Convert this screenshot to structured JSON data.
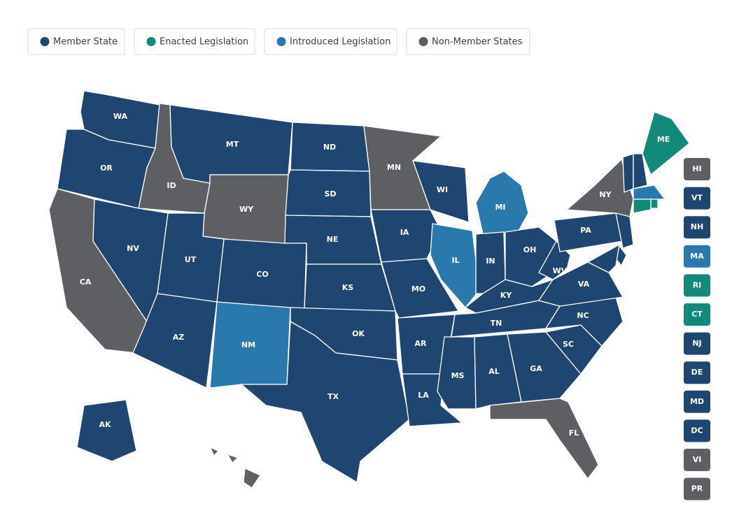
{
  "legend": [
    {
      "label": "Member State",
      "color": "#1f4670"
    },
    {
      "label": "Enacted Legislation",
      "color": "#13897a"
    },
    {
      "label": "Introduced Legislation",
      "color": "#2979ad"
    },
    {
      "label": "Non-Member States",
      "color": "#5d5f63"
    }
  ],
  "map_states": [
    {
      "label": "WA",
      "status": "Member State"
    },
    {
      "label": "OR",
      "status": "Member State"
    },
    {
      "label": "ID",
      "status": "Non-Member States"
    },
    {
      "label": "MT",
      "status": "Member State"
    },
    {
      "label": "WY",
      "status": "Non-Member States"
    },
    {
      "label": "ND",
      "status": "Member State"
    },
    {
      "label": "SD",
      "status": "Member State"
    },
    {
      "label": "NE",
      "status": "Member State"
    },
    {
      "label": "CA",
      "status": "Non-Member States"
    },
    {
      "label": "NV",
      "status": "Member State"
    },
    {
      "label": "UT",
      "status": "Member State"
    },
    {
      "label": "CO",
      "status": "Member State"
    },
    {
      "label": "AZ",
      "status": "Member State"
    },
    {
      "label": "NM",
      "status": "Introduced Legislation"
    },
    {
      "label": "KS",
      "status": "Member State"
    },
    {
      "label": "OK",
      "status": "Member State"
    },
    {
      "label": "TX",
      "status": "Member State"
    },
    {
      "label": "MN",
      "status": "Non-Member States"
    },
    {
      "label": "IA",
      "status": "Member State"
    },
    {
      "label": "MO",
      "status": "Member State"
    },
    {
      "label": "AR",
      "status": "Member State"
    },
    {
      "label": "LA",
      "status": "Member State"
    },
    {
      "label": "WI",
      "status": "Member State"
    },
    {
      "label": "IL",
      "status": "Introduced Legislation"
    },
    {
      "label": "MI",
      "status": "Introduced Legislation"
    },
    {
      "label": "IN",
      "status": "Member State"
    },
    {
      "label": "OH",
      "status": "Member State"
    },
    {
      "label": "KY",
      "status": "Member State"
    },
    {
      "label": "TN",
      "status": "Member State"
    },
    {
      "label": "MS",
      "status": "Member State"
    },
    {
      "label": "AL",
      "status": "Member State"
    },
    {
      "label": "GA",
      "status": "Member State"
    },
    {
      "label": "FL",
      "status": "Non-Member States"
    },
    {
      "label": "SC",
      "status": "Member State"
    },
    {
      "label": "NC",
      "status": "Member State"
    },
    {
      "label": "VA",
      "status": "Member State"
    },
    {
      "label": "WV",
      "status": "Member State"
    },
    {
      "label": "PA",
      "status": "Member State"
    },
    {
      "label": "NY",
      "status": "Non-Member States"
    },
    {
      "label": "ME",
      "status": "Enacted Legislation"
    },
    {
      "label": "AK",
      "status": "Member State"
    }
  ],
  "side_buttons": [
    {
      "label": "HI",
      "status": "Non-Member States"
    },
    {
      "label": "VT",
      "status": "Member State"
    },
    {
      "label": "NH",
      "status": "Member State"
    },
    {
      "label": "MA",
      "status": "Introduced Legislation"
    },
    {
      "label": "RI",
      "status": "Enacted Legislation"
    },
    {
      "label": "CT",
      "status": "Enacted Legislation"
    },
    {
      "label": "NJ",
      "status": "Member State"
    },
    {
      "label": "DE",
      "status": "Member State"
    },
    {
      "label": "MD",
      "status": "Member State"
    },
    {
      "label": "DC",
      "status": "Member State"
    },
    {
      "label": "VI",
      "status": "Non-Member States"
    },
    {
      "label": "PR",
      "status": "Non-Member States"
    }
  ]
}
